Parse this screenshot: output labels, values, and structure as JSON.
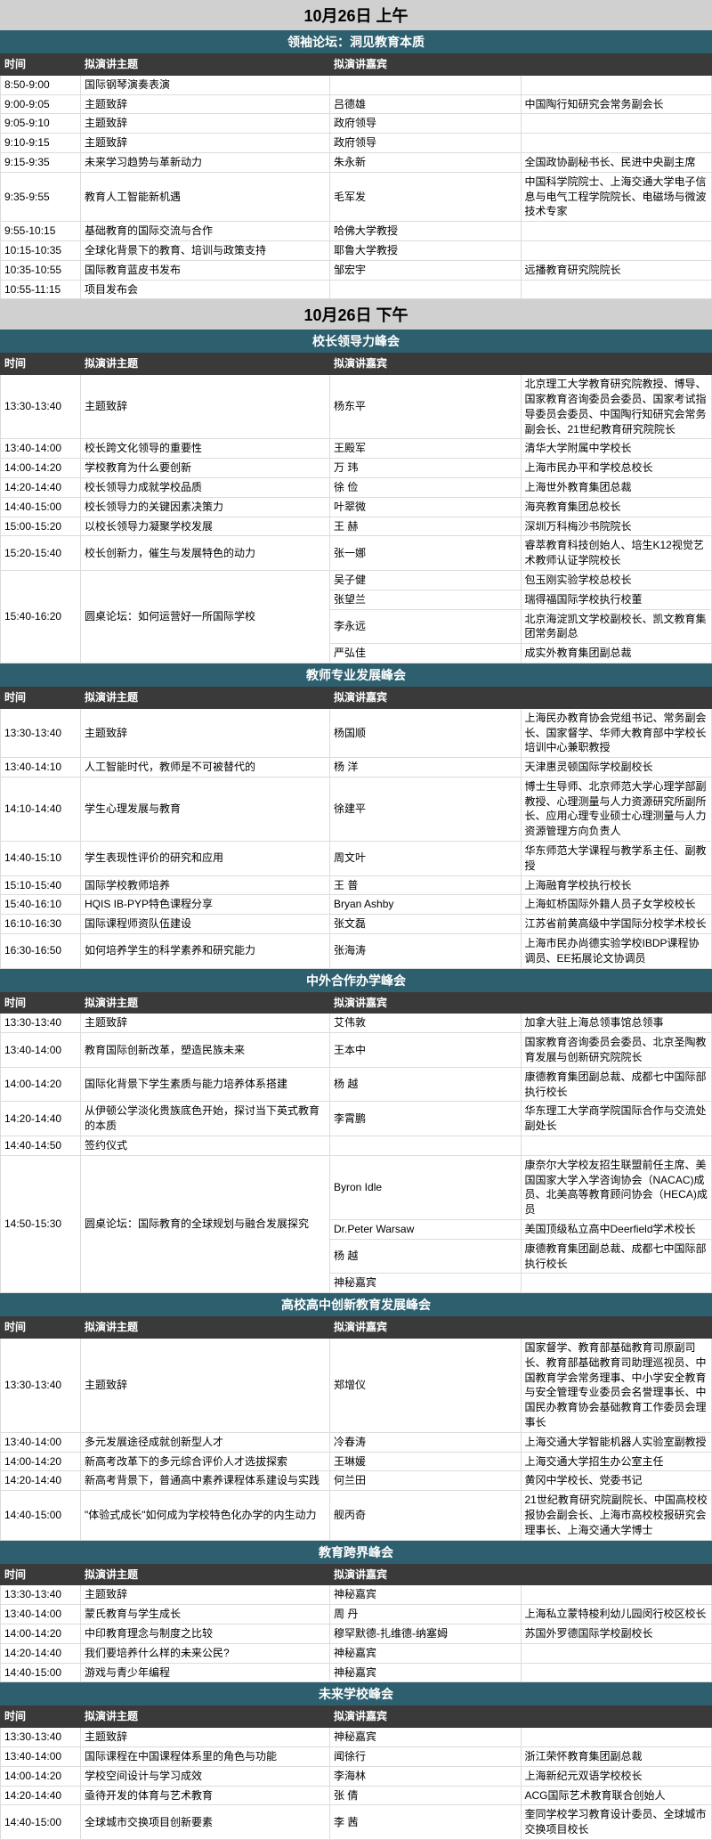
{
  "dates": {
    "morning": "10月26日  上午",
    "afternoon": "10月26日  下午"
  },
  "headers": {
    "time": "时间",
    "topic": "拟演讲主题",
    "speaker": "拟演讲嘉宾",
    "org_implicit": ""
  },
  "sections": [
    {
      "title": "领袖论坛：洞见教育本质",
      "date_key": "morning",
      "rows": [
        {
          "time": "8:50-9:00",
          "topic": "国际钢琴演奏表演",
          "speaker": "",
          "org": ""
        },
        {
          "time": "9:00-9:05",
          "topic": "主题致辞",
          "speaker": "吕德雄",
          "org": "中国陶行知研究会常务副会长"
        },
        {
          "time": "9:05-9:10",
          "topic": "主题致辞",
          "speaker": "政府领导",
          "org": ""
        },
        {
          "time": "9:10-9:15",
          "topic": "主题致辞",
          "speaker": "政府领导",
          "org": ""
        },
        {
          "time": "9:15-9:35",
          "topic": "未来学习趋势与革新动力",
          "speaker": "朱永新",
          "org": "全国政协副秘书长、民进中央副主席"
        },
        {
          "time": "9:35-9:55",
          "topic": "教育人工智能新机遇",
          "speaker": "毛军发",
          "org": "中国科学院院士、上海交通大学电子信息与电气工程学院院长、电磁场与微波技术专家"
        },
        {
          "time": "9:55-10:15",
          "topic": "基础教育的国际交流与合作",
          "speaker": "哈佛大学教授",
          "org": ""
        },
        {
          "time": "10:15-10:35",
          "topic": "全球化背景下的教育、培训与政策支持",
          "speaker": "耶鲁大学教授",
          "org": ""
        },
        {
          "time": "10:35-10:55",
          "topic": "国际教育蓝皮书发布",
          "speaker": "邹宏宇",
          "org": "远播教育研究院院长"
        },
        {
          "time": "10:55-11:15",
          "topic": "项目发布会",
          "speaker": "",
          "org": ""
        }
      ]
    },
    {
      "title": "校长领导力峰会",
      "date_key": "afternoon",
      "rows": [
        {
          "time": "13:30-13:40",
          "topic": "主题致辞",
          "speaker": "杨东平",
          "org": "北京理工大学教育研究院教授、博导、国家教育咨询委员会委员、国家考试指导委员会委员、中国陶行知研究会常务副会长、21世纪教育研究院院长"
        },
        {
          "time": "13:40-14:00",
          "topic": "校长跨文化领导的重要性",
          "speaker": "王殿军",
          "org": "清华大学附属中学校长"
        },
        {
          "time": "14:00-14:20",
          "topic": "学校教育为什么要创新",
          "speaker": "万  玮",
          "org": "上海市民办平和学校总校长"
        },
        {
          "time": "14:20-14:40",
          "topic": "校长领导力成就学校品质",
          "speaker": "徐  俭",
          "org": "上海世外教育集团总裁"
        },
        {
          "time": "14:40-15:00",
          "topic": "校长领导力的关键因素决策力",
          "speaker": "叶翠微",
          "org": "海亮教育集团总校长"
        },
        {
          "time": "15:00-15:20",
          "topic": "以校长领导力凝聚学校发展",
          "speaker": "王  赫",
          "org": "深圳万科梅沙书院院长"
        },
        {
          "time": "15:20-15:40",
          "topic": "校长创新力，催生与发展特色的动力",
          "speaker": "张一娜",
          "org": "睿萃教育科技创始人、培生K12视觉艺术教师认证学院校长"
        },
        {
          "time": "15:40-16:20",
          "topic": "圆桌论坛：如何运营好一所国际学校",
          "rowspan": 4,
          "speaker": "吴子健",
          "org": "包玉刚实验学校总校长"
        },
        {
          "merged": true,
          "speaker": "张望兰",
          "org": "瑞得福国际学校执行校董"
        },
        {
          "merged": true,
          "speaker": "李永远",
          "org": "北京海淀凯文学校副校长、凯文教育集团常务副总"
        },
        {
          "merged": true,
          "speaker": "严弘佳",
          "org": "成实外教育集团副总裁"
        }
      ]
    },
    {
      "title": "教师专业发展峰会",
      "rows": [
        {
          "time": "13:30-13:40",
          "topic": "主题致辞",
          "speaker": "杨国顺",
          "org": "上海民办教育协会党组书记、常务副会长、国家督学、华师大教育部中学校长培训中心兼职教授"
        },
        {
          "time": "13:40-14:10",
          "topic": "人工智能时代，教师是不可被替代的",
          "speaker": "杨  洋",
          "org": "天津惠灵顿国际学校副校长"
        },
        {
          "time": "14:10-14:40",
          "topic": "学生心理发展与教育",
          "speaker": "徐建平",
          "org": "博士生导师、北京师范大学心理学部副教授、心理测量与人力资源研究所副所长、应用心理专业硕士心理测量与人力资源管理方向负责人"
        },
        {
          "time": "14:40-15:10",
          "topic": "学生表现性评价的研究和应用",
          "speaker": "周文叶",
          "org": "华东师范大学课程与教学系主任、副教授"
        },
        {
          "time": "15:10-15:40",
          "topic": "国际学校教师培养",
          "speaker": "王  普",
          "org": "上海融育学校执行校长"
        },
        {
          "time": "15:40-16:10",
          "topic": "HQIS IB-PYP特色课程分享",
          "speaker": "Bryan Ashby",
          "org": "上海虹桥国际外籍人员子女学校校长"
        },
        {
          "time": "16:10-16:30",
          "topic": "国际课程师资队伍建设",
          "speaker": "张文磊",
          "org": "江苏省前黄高级中学国际分校学术校长"
        },
        {
          "time": "16:30-16:50",
          "topic": "如何培养学生的科学素养和研究能力",
          "speaker": "张海涛",
          "org": "上海市民办尚德实验学校IBDP课程协调员、EE拓展论文协调员"
        }
      ]
    },
    {
      "title": "中外合作办学峰会",
      "rows": [
        {
          "time": "13:30-13:40",
          "topic": "主题致辞",
          "speaker": "艾伟敦",
          "org": "加拿大驻上海总领事馆总领事"
        },
        {
          "time": "13:40-14:00",
          "topic": "教育国际创新改革，塑造民族未来",
          "speaker": "王本中",
          "org": "国家教育咨询委员会委员、北京圣陶教育发展与创新研究院院长"
        },
        {
          "time": "14:00-14:20",
          "topic": "国际化背景下学生素质与能力培养体系搭建",
          "speaker": "杨  越",
          "org": "康德教育集团副总裁、成都七中国际部执行校长"
        },
        {
          "time": "14:20-14:40",
          "topic": "从伊顿公学淡化贵族底色开始，探讨当下英式教育的本质",
          "speaker": "李霄鹏",
          "org": "华东理工大学商学院国际合作与交流处副处长"
        },
        {
          "time": "14:40-14:50",
          "topic": "签约仪式",
          "speaker": "",
          "org": ""
        },
        {
          "time": "14:50-15:30",
          "topic": "圆桌论坛：国际教育的全球规划与融合发展探究",
          "rowspan": 4,
          "speaker": "Byron Idle",
          "org": "康奈尔大学校友招生联盟前任主席、美国国家大学入学咨询协会（NACAC)成员、北美高等教育顾问协会（HECA)成员"
        },
        {
          "merged": true,
          "speaker": "Dr.Peter Warsaw",
          "org": "美国顶级私立高中Deerfield学术校长"
        },
        {
          "merged": true,
          "speaker": "杨  越",
          "org": "康德教育集团副总裁、成都七中国际部执行校长"
        },
        {
          "merged": true,
          "speaker": "神秘嘉宾",
          "org": ""
        }
      ]
    },
    {
      "title": "高校高中创新教育发展峰会",
      "rows": [
        {
          "time": "13:30-13:40",
          "topic": "主题致辞",
          "speaker": "郑增仪",
          "org": "国家督学、教育部基础教育司原副司长、教育部基础教育司助理巡视员、中国教育学会常务理事、中小学安全教育与安全管理专业委员会名誉理事长、中国民办教育协会基础教育工作委员会理事长"
        },
        {
          "time": "13:40-14:00",
          "topic": "多元发展途径成就创新型人才",
          "speaker": "冷春涛",
          "org": "上海交通大学智能机器人实验室副教授"
        },
        {
          "time": "14:00-14:20",
          "topic": "新高考改革下的多元综合评价人才选拔探索",
          "speaker": "王琳媛",
          "org": "上海交通大学招生办公室主任"
        },
        {
          "time": "14:20-14:40",
          "topic": "新高考背景下，普通高中素养课程体系建设与实践",
          "speaker": "何兰田",
          "org": "黄冈中学校长、党委书记"
        },
        {
          "time": "14:40-15:00",
          "topic": "\"体验式成长\"如何成为学校特色化办学的内生动力",
          "speaker": "舰丙奇",
          "org": "21世纪教育研究院副院长、中国高校校报协会副会长、上海市高校校报研究会理事长、上海交通大学博士"
        }
      ]
    },
    {
      "title": "教育跨界峰会",
      "rows": [
        {
          "time": "13:30-13:40",
          "topic": "主题致辞",
          "speaker": "神秘嘉宾",
          "org": ""
        },
        {
          "time": "13:40-14:00",
          "topic": "蒙氏教育与学生成长",
          "speaker": "周  丹",
          "org": "上海私立蒙特梭利幼儿园闵行校区校长"
        },
        {
          "time": "14:00-14:20",
          "topic": "中印教育理念与制度之比较",
          "speaker": "穆罕默德-扎维德-纳塞姆",
          "org": "苏国外罗德国际学校副校长"
        },
        {
          "time": "14:20-14:40",
          "topic": "我们要培养什么样的未来公民?",
          "speaker": "神秘嘉宾",
          "org": ""
        },
        {
          "time": "14:40-15:00",
          "topic": "游戏与青少年编程",
          "speaker": "神秘嘉宾",
          "org": ""
        }
      ]
    },
    {
      "title": "未来学校峰会",
      "rows": [
        {
          "time": "13:30-13:40",
          "topic": "主题致辞",
          "speaker": "神秘嘉宾",
          "org": ""
        },
        {
          "time": "13:40-14:00",
          "topic": "国际课程在中国课程体系里的角色与功能",
          "speaker": "闻徐行",
          "org": "浙江荣怀教育集团副总裁"
        },
        {
          "time": "14:00-14:20",
          "topic": "学校空间设计与学习成效",
          "speaker": "李海林",
          "org": "上海新纪元双语学校校长"
        },
        {
          "time": "14:20-14:40",
          "topic": "亟待开发的体育与艺术教育",
          "speaker": "张  倩",
          "org": "ACG国际艺术教育联合创始人"
        },
        {
          "time": "14:40-15:00",
          "topic": "全球城市交换项目创新要素",
          "speaker": "李  茜",
          "org": "奎同学校学习教育设计委员、全球城市交换项目校长"
        }
      ]
    }
  ]
}
